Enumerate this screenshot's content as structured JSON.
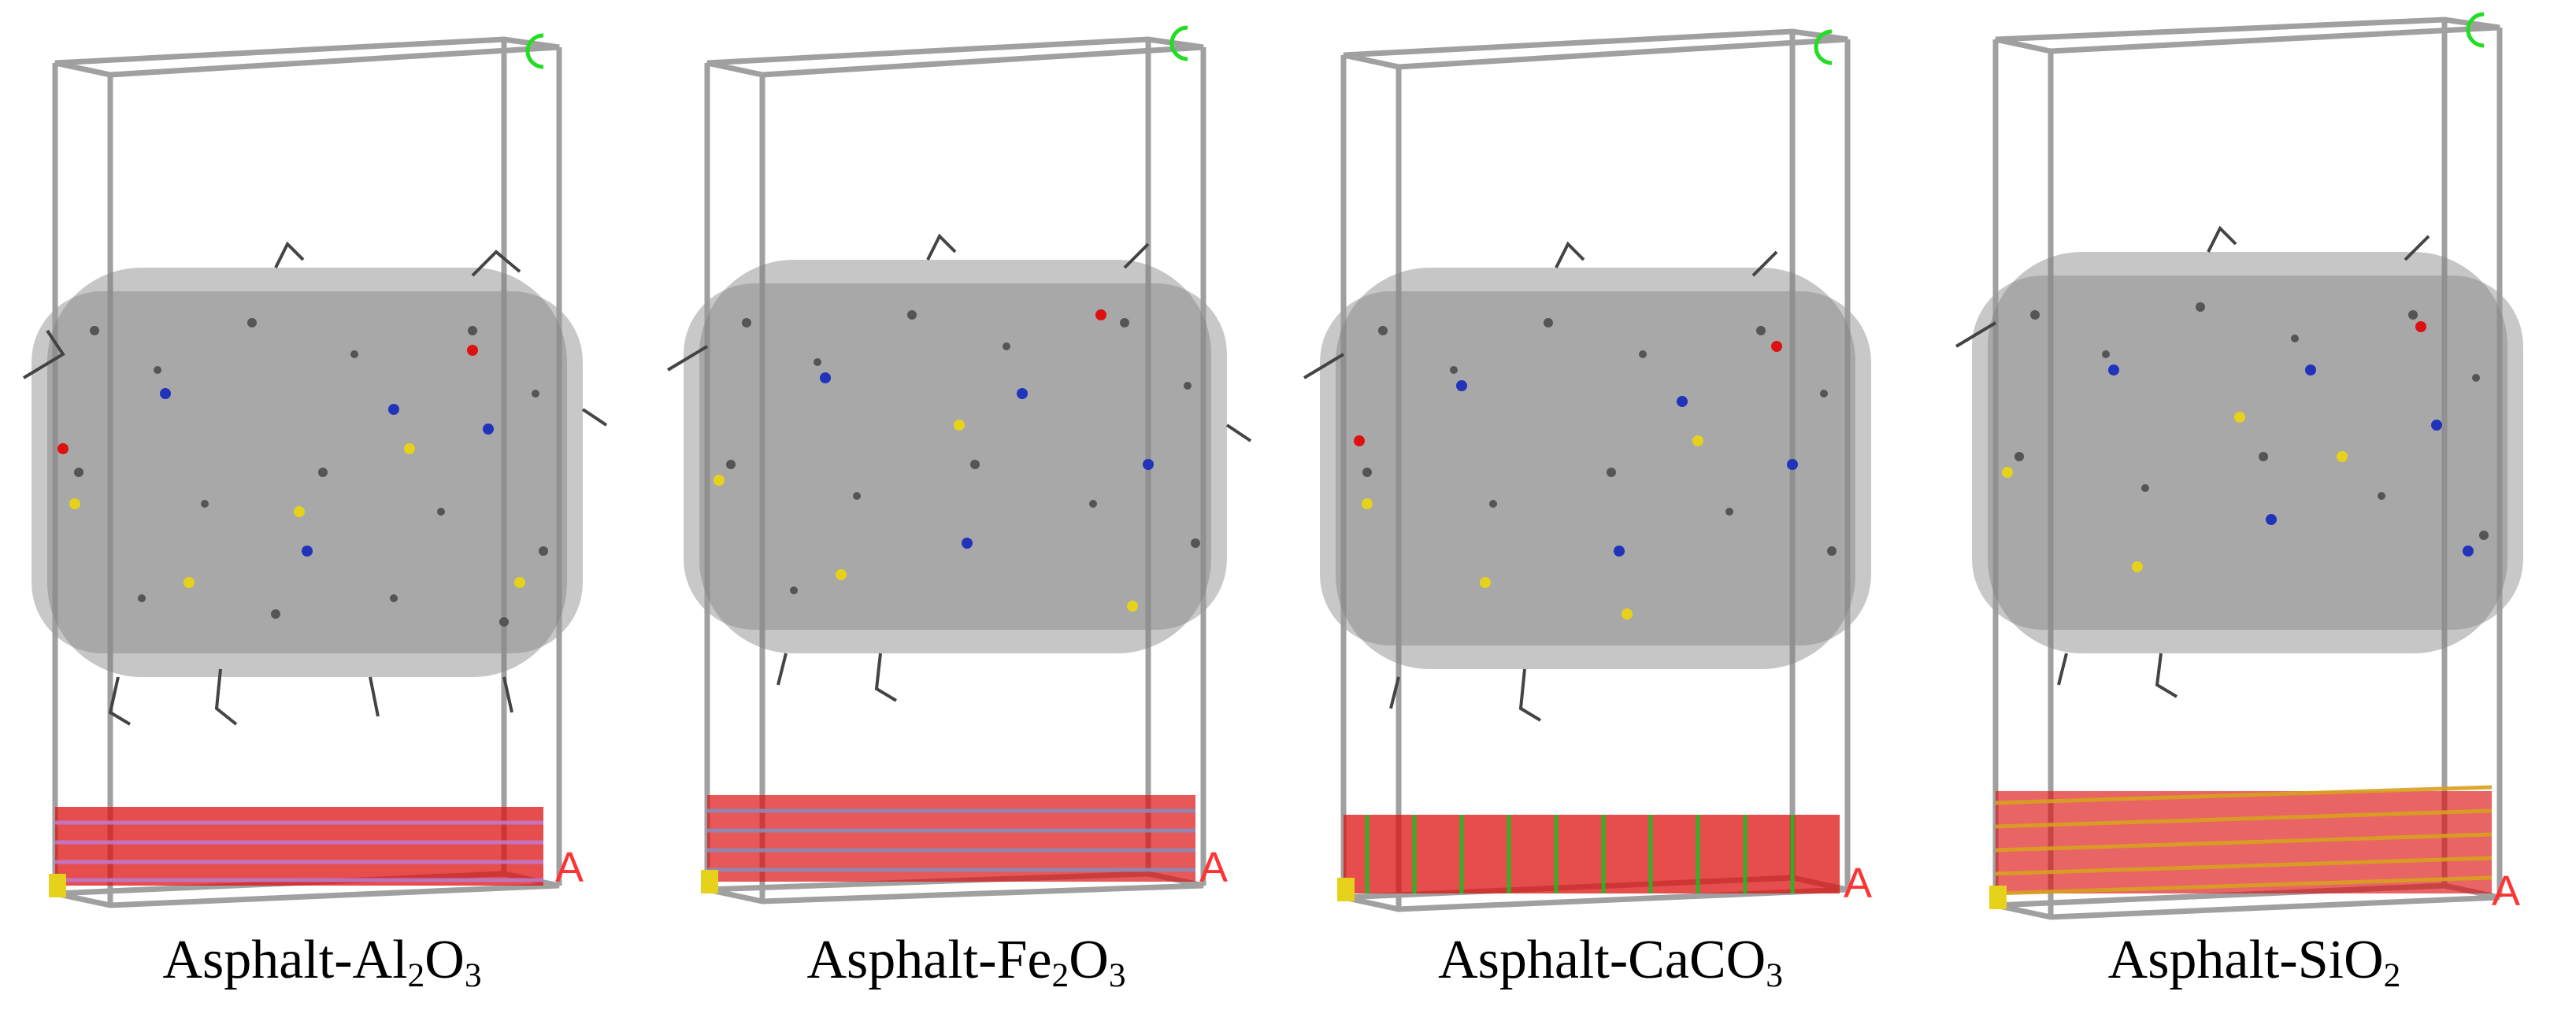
{
  "colors": {
    "box_edge": "#a0a0a0",
    "asphalt": "#7a7a7a",
    "c_axis": "#22dd22",
    "a_axis": "#ff3333",
    "oxygen": "#dd1111",
    "sulfur": "#e6d21a",
    "nitrogen": "#2233bb"
  },
  "panels": [
    {
      "caption": {
        "prefix": "Asphalt-Al",
        "sub1": "2",
        "mid": "O",
        "sub2": "3"
      },
      "c_axis": "C",
      "a_axis": "A",
      "substrate_atom_colors": [
        "#dd1111",
        "#c07ad0"
      ]
    },
    {
      "caption": {
        "prefix": "Asphalt-Fe",
        "sub1": "2",
        "mid": "O",
        "sub2": "3"
      },
      "c_axis": "C",
      "a_axis": "A",
      "substrate_atom_colors": [
        "#dd1111",
        "#8a8ab8"
      ]
    },
    {
      "caption": {
        "prefix": "Asphalt-CaCO",
        "sub1": "",
        "mid": "",
        "sub2": "3"
      },
      "c_axis": "C",
      "a_axis": "A",
      "substrate_atom_colors": [
        "#dd1111",
        "#22bb22"
      ]
    },
    {
      "caption": {
        "prefix": "Asphalt-SiO",
        "sub1": "",
        "mid": "",
        "sub2": "2"
      },
      "c_axis": "C",
      "a_axis": "A",
      "substrate_atom_colors": [
        "#dd1111",
        "#d8a020"
      ]
    }
  ]
}
